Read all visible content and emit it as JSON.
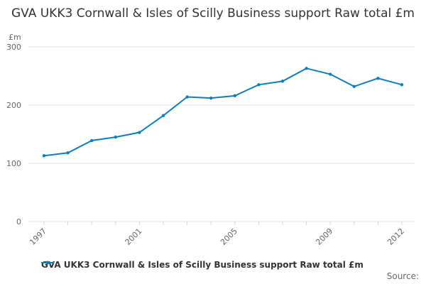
{
  "chart_data": {
    "type": "line",
    "title": "GVA UKK3 Cornwall & Isles of Scilly Business support Raw total £m",
    "ylabel": "£m",
    "xlabel": "",
    "ylim": [
      0,
      300
    ],
    "yticks": [
      0,
      100,
      200,
      300
    ],
    "xticks": [
      "1997",
      "2001",
      "2005",
      "2009",
      "2012"
    ],
    "x": [
      1997,
      1998,
      1999,
      2000,
      2001,
      2002,
      2003,
      2004,
      2005,
      2006,
      2007,
      2008,
      2009,
      2010,
      2011,
      2012
    ],
    "series": [
      {
        "name": "GVA UKK3 Cornwall & Isles of Scilly Business support Raw total £m",
        "color": "#0a7fc6",
        "values": [
          113,
          118,
          139,
          145,
          153,
          182,
          214,
          212,
          216,
          235,
          241,
          263,
          253,
          232,
          246,
          235
        ]
      }
    ],
    "grid": true,
    "legend": "bottom"
  },
  "source_label": "Source:"
}
